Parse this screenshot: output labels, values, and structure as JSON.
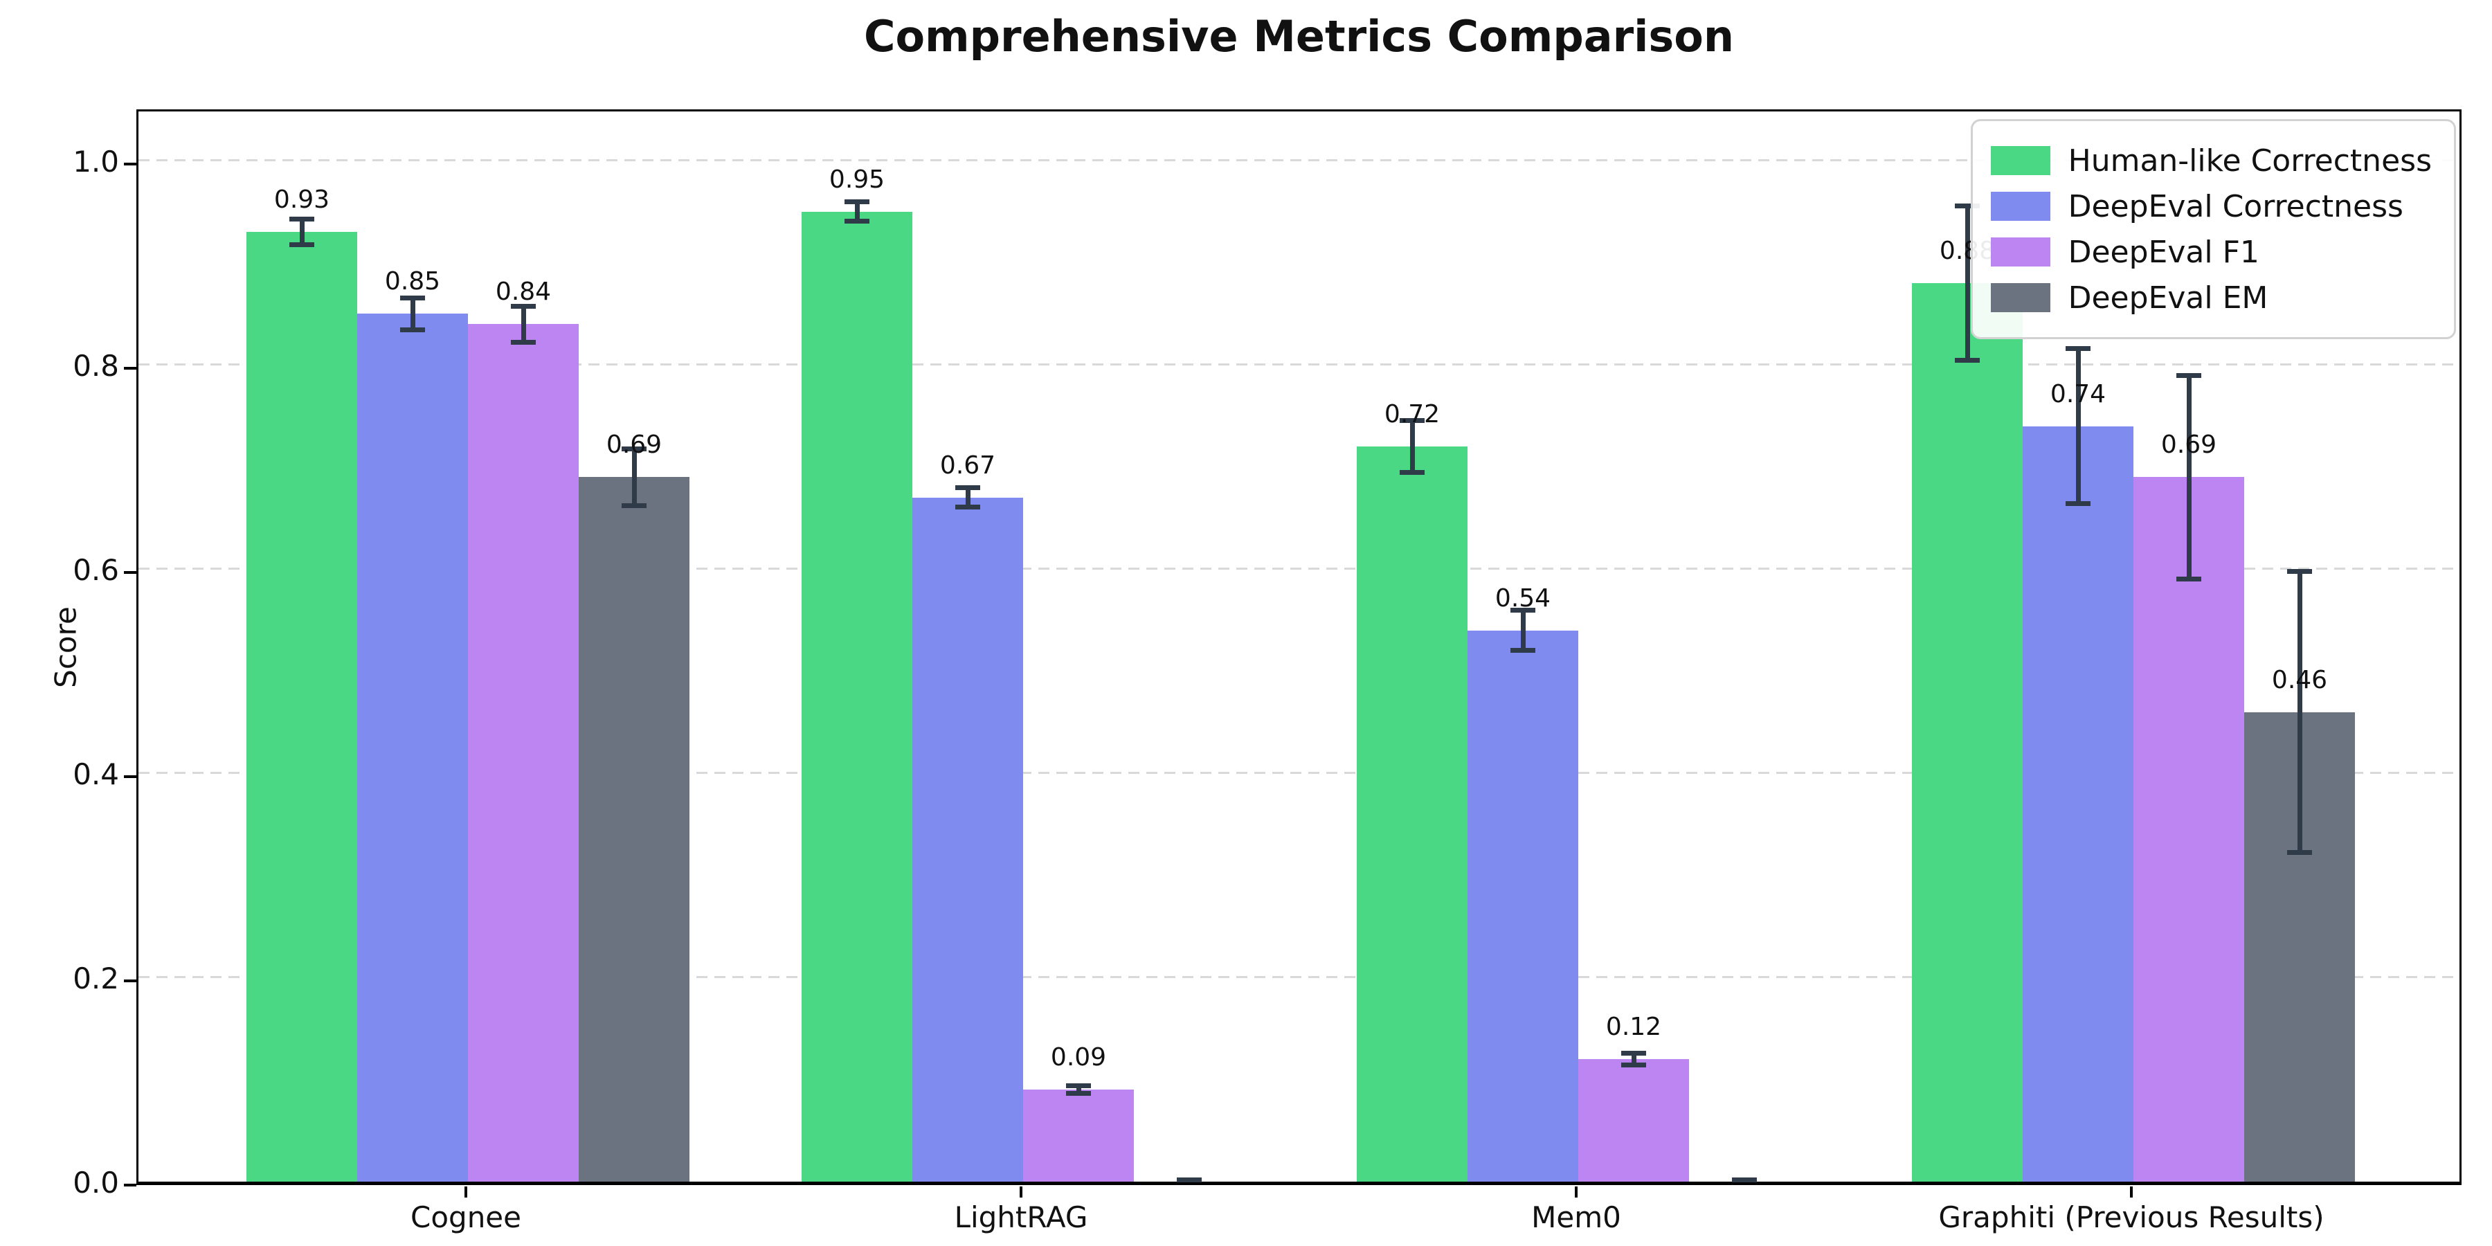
{
  "chart_data": {
    "type": "bar",
    "title": "Comprehensive Metrics Comparison",
    "ylabel": "Score",
    "xlabel": "",
    "categories": [
      "Cognee",
      "LightRAG",
      "Mem0",
      "Graphiti (Previous Results)"
    ],
    "series": [
      {
        "name": "Human-like Correctness",
        "color": "#4bd884",
        "values": [
          0.93,
          0.95,
          0.72,
          0.88
        ],
        "errors": [
          0.015,
          0.012,
          0.028,
          0.078
        ],
        "value_labels": [
          "0.93",
          "0.95",
          "0.72",
          "0.88"
        ]
      },
      {
        "name": "DeepEval Correctness",
        "color": "#7f8bef",
        "values": [
          0.85,
          0.67,
          0.54,
          0.74
        ],
        "errors": [
          0.018,
          0.012,
          0.022,
          0.078
        ],
        "value_labels": [
          "0.85",
          "0.67",
          "0.54",
          "0.74"
        ]
      },
      {
        "name": "DeepEval F1",
        "color": "#bc85f2",
        "values": [
          0.84,
          0.09,
          0.12,
          0.69
        ],
        "errors": [
          0.02,
          0.006,
          0.008,
          0.102
        ],
        "value_labels": [
          "0.84",
          "0.09",
          "0.12",
          "0.69"
        ]
      },
      {
        "name": "DeepEval EM",
        "color": "#6b7280",
        "values": [
          0.69,
          0.0,
          0.0,
          0.46
        ],
        "errors": [
          0.03,
          0.004,
          0.004,
          0.14
        ],
        "value_labels": [
          "0.69",
          "",
          "",
          "0.46"
        ]
      }
    ],
    "yticks": [
      {
        "value": 0.0,
        "label": "0.0"
      },
      {
        "value": 0.2,
        "label": "0.2"
      },
      {
        "value": 0.4,
        "label": "0.4"
      },
      {
        "value": 0.6,
        "label": "0.6"
      },
      {
        "value": 0.8,
        "label": "0.8"
      },
      {
        "value": 1.0,
        "label": "1.0"
      }
    ],
    "ylim": [
      0,
      1.053
    ],
    "grid": "horizontal-dashed",
    "legend_position": "upper right",
    "error_bar_color": "#303b49"
  }
}
